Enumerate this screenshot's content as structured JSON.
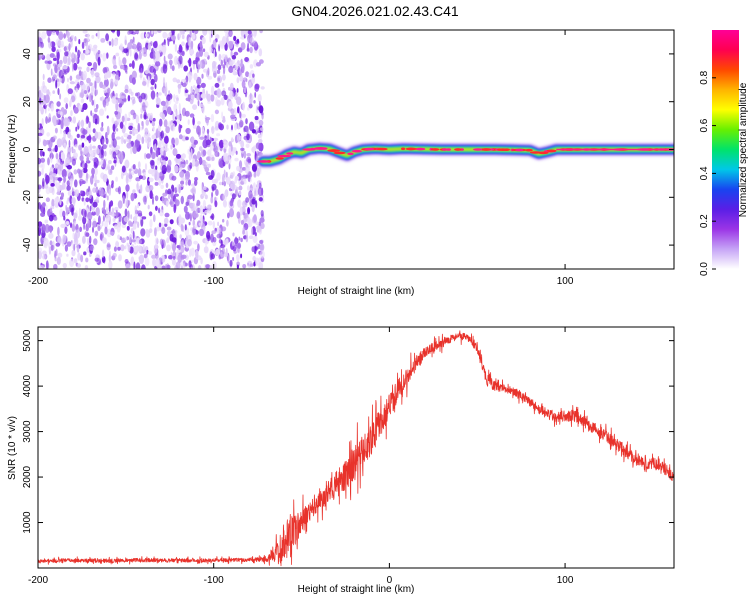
{
  "title": "GN04.2026.021.02.43.C41",
  "chart_data": [
    {
      "type": "heatmap",
      "xlabel": "Height of straight line (km)",
      "ylabel": "Frequency (Hz)",
      "xlim": [
        -200,
        162
      ],
      "ylim": [
        -50,
        50
      ],
      "xticks": [
        -200,
        -100,
        100
      ],
      "xtick_labels": [
        "-200",
        "-100",
        "100"
      ],
      "yticks": [
        40,
        20,
        0,
        -20,
        -40
      ],
      "ytick_labels": [
        "40",
        "20",
        "0",
        "-20",
        "-40"
      ],
      "noise_region": {
        "x_from": -200,
        "x_to": -72,
        "y_from": -50,
        "y_to": 50
      },
      "ridge": [
        {
          "x": -72,
          "y": -5
        },
        {
          "x": -68,
          "y": -5
        },
        {
          "x": -63,
          "y": -4
        },
        {
          "x": -58,
          "y": -2
        },
        {
          "x": -54,
          "y": -1
        },
        {
          "x": -50,
          "y": -1.5
        },
        {
          "x": -46,
          "y": 0
        },
        {
          "x": -40,
          "y": 0.5
        },
        {
          "x": -34,
          "y": 0.2
        },
        {
          "x": -28,
          "y": -1.5
        },
        {
          "x": -24,
          "y": -2.5
        },
        {
          "x": -20,
          "y": -1
        },
        {
          "x": -15,
          "y": 0
        },
        {
          "x": -8,
          "y": 0.3
        },
        {
          "x": 0,
          "y": 0
        },
        {
          "x": 8,
          "y": 0.3
        },
        {
          "x": 15,
          "y": 0.2
        },
        {
          "x": 30,
          "y": 0
        },
        {
          "x": 60,
          "y": 0
        },
        {
          "x": 80,
          "y": -0.3
        },
        {
          "x": 85,
          "y": -1.8
        },
        {
          "x": 90,
          "y": -1
        },
        {
          "x": 95,
          "y": 0
        },
        {
          "x": 120,
          "y": 0
        },
        {
          "x": 162,
          "y": 0
        }
      ],
      "colorbar": {
        "label": "Normalized spectral amplitude",
        "range": [
          0,
          1
        ],
        "ticks": [
          0.0,
          0.2,
          0.4,
          0.6,
          0.8
        ],
        "tick_labels": [
          "0.0",
          "0.2",
          "0.4",
          "0.6",
          "0.8"
        ],
        "colors": [
          "#ffffff",
          "#c6a4f6",
          "#9b35e6",
          "#5a1ee6",
          "#1844f0",
          "#00c8e8",
          "#00e36a",
          "#68f000",
          "#ffff00",
          "#ffb400",
          "#ff4800",
          "#ff0050",
          "#ff0096"
        ]
      }
    },
    {
      "type": "line",
      "xlabel": "Height of straight line (km)",
      "ylabel": "SNR (10 * v/v)",
      "xlim": [
        -200,
        162
      ],
      "ylim": [
        0,
        5300
      ],
      "xticks": [
        -200,
        -100,
        0,
        100
      ],
      "xtick_labels": [
        "-200",
        "-100",
        "0",
        "100"
      ],
      "yticks": [
        1000,
        2000,
        3000,
        4000,
        5000
      ],
      "ytick_labels": [
        "1000",
        "2000",
        "3000",
        "4000",
        "5000"
      ],
      "color": "#e8322b",
      "series": [
        {
          "name": "SNR",
          "x": [
            -200,
            -180,
            -160,
            -140,
            -120,
            -100,
            -90,
            -80,
            -70,
            -65,
            -60,
            -55,
            -50,
            -45,
            -40,
            -35,
            -30,
            -25,
            -20,
            -15,
            -10,
            -5,
            0,
            5,
            10,
            15,
            20,
            25,
            30,
            35,
            40,
            45,
            50,
            55,
            60,
            65,
            70,
            75,
            80,
            85,
            90,
            95,
            100,
            105,
            110,
            115,
            120,
            125,
            130,
            135,
            140,
            145,
            150,
            155,
            160,
            162
          ],
          "y": [
            150,
            170,
            160,
            175,
            165,
            170,
            180,
            180,
            200,
            280,
            550,
            800,
            1000,
            1250,
            1450,
            1650,
            1850,
            2050,
            2300,
            2550,
            2850,
            3200,
            3550,
            3900,
            4200,
            4500,
            4700,
            4850,
            4950,
            5050,
            5100,
            5050,
            4850,
            4150,
            4000,
            3950,
            3900,
            3800,
            3650,
            3500,
            3400,
            3300,
            3350,
            3350,
            3250,
            3100,
            3000,
            2850,
            2700,
            2550,
            2400,
            2300,
            2300,
            2250,
            2050,
            2000
          ],
          "spread": [
            60,
            60,
            60,
            60,
            60,
            60,
            60,
            60,
            90,
            250,
            700,
            500,
            400,
            350,
            300,
            350,
            400,
            500,
            550,
            550,
            500,
            450,
            400,
            350,
            300,
            250,
            200,
            150,
            150,
            120,
            120,
            120,
            150,
            200,
            150,
            120,
            120,
            150,
            150,
            150,
            150,
            180,
            180,
            180,
            180,
            180,
            180,
            180,
            180,
            180,
            180,
            180,
            180,
            180,
            200,
            200
          ]
        }
      ]
    }
  ]
}
